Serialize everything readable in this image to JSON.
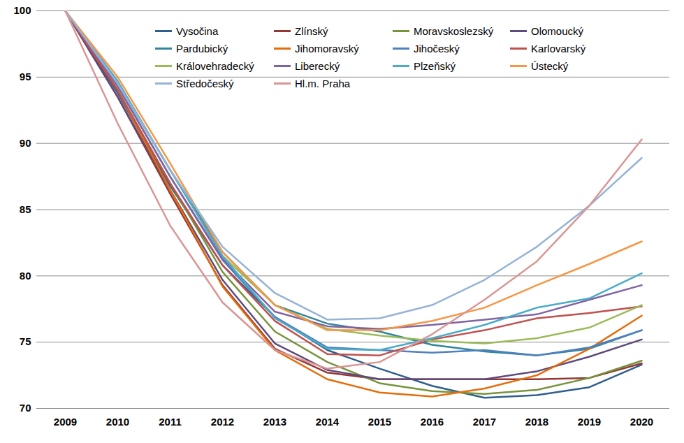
{
  "chart_data": {
    "type": "line",
    "x": [
      2009,
      2010,
      2011,
      2012,
      2013,
      2014,
      2015,
      2016,
      2017,
      2018,
      2019,
      2020
    ],
    "ylim": [
      70,
      100
    ],
    "yticks": [
      70,
      75,
      80,
      85,
      90,
      95,
      100
    ],
    "grid": true,
    "legend": "top",
    "series": [
      {
        "name": "Vysočina",
        "color": "#2F5F8A",
        "values": [
          100,
          93.8,
          86.8,
          80.8,
          76.9,
          74.4,
          73.0,
          71.7,
          70.8,
          71.0,
          71.6,
          73.3
        ]
      },
      {
        "name": "Zlínský",
        "color": "#953735",
        "values": [
          100,
          93.5,
          86.2,
          79.3,
          74.5,
          72.7,
          72.2,
          72.2,
          72.2,
          72.2,
          72.3,
          73.4
        ]
      },
      {
        "name": "Moravskoslezský",
        "color": "#77933C",
        "values": [
          100,
          94.0,
          87.0,
          80.3,
          75.8,
          73.5,
          71.9,
          71.3,
          71.1,
          71.4,
          72.3,
          73.6
        ]
      },
      {
        "name": "Olomoucký",
        "color": "#604A7B",
        "values": [
          100,
          93.5,
          86.5,
          79.7,
          74.9,
          72.9,
          72.2,
          72.2,
          72.2,
          72.8,
          73.9,
          75.2
        ]
      },
      {
        "name": "Pardubický",
        "color": "#31859C",
        "values": [
          100,
          94.5,
          88.0,
          81.8,
          77.8,
          76.4,
          75.8,
          74.8,
          74.3,
          74.0,
          74.5,
          75.9
        ]
      },
      {
        "name": "Jihomoravský",
        "color": "#E46C0A",
        "values": [
          100,
          94.0,
          86.5,
          79.2,
          74.4,
          72.2,
          71.2,
          70.9,
          71.5,
          72.5,
          74.5,
          77.0
        ]
      },
      {
        "name": "Jihočeský",
        "color": "#4F81BD",
        "values": [
          100,
          94.3,
          87.5,
          81.2,
          76.9,
          74.6,
          74.4,
          74.2,
          74.4,
          74.0,
          74.6,
          75.9
        ]
      },
      {
        "name": "Karlovarský",
        "color": "#C0504D",
        "values": [
          100,
          94.0,
          87.0,
          80.8,
          76.6,
          74.1,
          74.0,
          75.2,
          75.9,
          76.8,
          77.2,
          77.7
        ]
      },
      {
        "name": "Královehradecký",
        "color": "#9BBB59",
        "values": [
          100,
          94.5,
          88.0,
          81.5,
          77.8,
          76.0,
          75.5,
          75.1,
          74.9,
          75.3,
          76.1,
          77.8
        ]
      },
      {
        "name": "Liberecký",
        "color": "#8064A2",
        "values": [
          100,
          94.3,
          87.5,
          81.3,
          77.3,
          76.2,
          76.0,
          76.3,
          76.7,
          77.1,
          78.2,
          79.3
        ]
      },
      {
        "name": "Plzeňský",
        "color": "#4BACC6",
        "values": [
          100,
          94.7,
          88.0,
          81.5,
          76.8,
          74.5,
          74.4,
          75.3,
          76.3,
          77.6,
          78.3,
          80.2
        ]
      },
      {
        "name": "Ústecký",
        "color": "#F79646",
        "values": [
          100,
          95.0,
          88.5,
          81.8,
          77.8,
          75.9,
          75.9,
          76.6,
          77.6,
          79.3,
          80.9,
          82.6
        ]
      },
      {
        "name": "Středočeský",
        "color": "#95B3D7",
        "values": [
          100,
          94.5,
          88.0,
          82.2,
          78.7,
          76.7,
          76.8,
          77.8,
          79.7,
          82.2,
          85.3,
          88.9
        ]
      },
      {
        "name": "Hl.m. Praha",
        "color": "#D99694",
        "values": [
          100,
          91.5,
          83.8,
          78.0,
          74.4,
          73.0,
          73.5,
          75.6,
          78.2,
          81.1,
          85.3,
          90.3
        ]
      }
    ]
  }
}
